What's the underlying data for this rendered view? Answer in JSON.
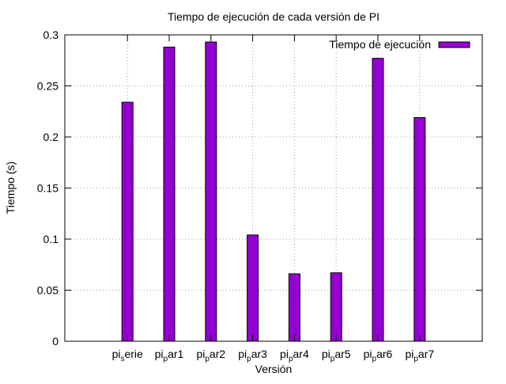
{
  "chart_data": {
    "type": "bar",
    "title": "Tiempo de ejecución de cada versión de PI",
    "xlabel": "Versión",
    "ylabel": "Tiempo (s)",
    "ylim": [
      0,
      0.3
    ],
    "yticks": [
      "0",
      "0.05",
      "0.1",
      "0.15",
      "0.2",
      "0.25",
      "0.3"
    ],
    "grid": true,
    "legend_position": "top-right",
    "categories": [
      {
        "base": "pi",
        "sub": "s",
        "rest": "erie"
      },
      {
        "base": "pi",
        "sub": "p",
        "rest": "ar1"
      },
      {
        "base": "pi",
        "sub": "p",
        "rest": "ar2"
      },
      {
        "base": "pi",
        "sub": "p",
        "rest": "ar3"
      },
      {
        "base": "pi",
        "sub": "p",
        "rest": "ar4"
      },
      {
        "base": "pi",
        "sub": "p",
        "rest": "ar5"
      },
      {
        "base": "pi",
        "sub": "p",
        "rest": "ar6"
      },
      {
        "base": "pi",
        "sub": "p",
        "rest": "ar7"
      }
    ],
    "series": [
      {
        "name": "Tiempo de ejecución",
        "color": "#9400d3",
        "values": [
          0.234,
          0.288,
          0.293,
          0.104,
          0.066,
          0.067,
          0.277,
          0.219
        ]
      }
    ]
  }
}
